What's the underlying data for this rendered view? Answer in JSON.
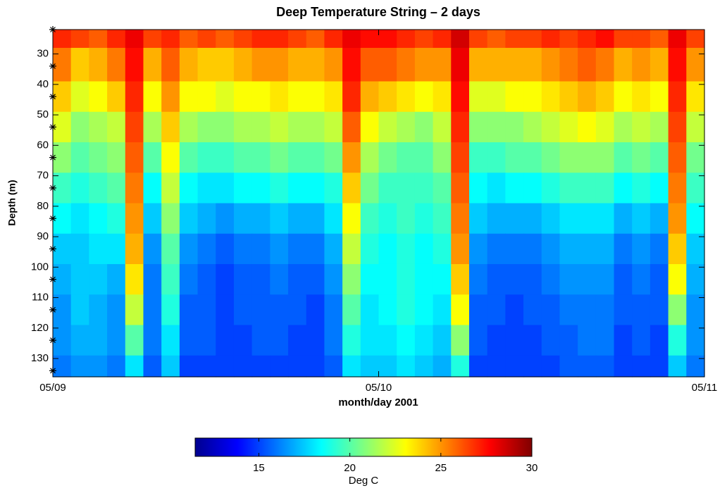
{
  "chart_data": {
    "type": "heatmap",
    "title": "Deep Temperature String – 2 days",
    "xlabel": "month/day 2001",
    "ylabel": "Depth (m)",
    "xlim": [
      0,
      2
    ],
    "xticks": [
      {
        "value": 0,
        "label": "05/09"
      },
      {
        "value": 1,
        "label": "05/10"
      },
      {
        "value": 2,
        "label": "05/11"
      }
    ],
    "ylim": [
      22,
      136
    ],
    "yticks": [
      30,
      40,
      50,
      60,
      70,
      80,
      90,
      100,
      110,
      120,
      130
    ],
    "y_reversed": true,
    "colormap": "jet",
    "y": [
      22,
      34,
      44,
      54,
      64,
      74,
      84,
      94,
      104,
      114,
      124,
      134
    ],
    "z": [
      [
        27,
        26.5,
        26,
        27,
        28,
        26.5,
        27,
        26,
        26.5,
        26,
        26.5,
        27,
        27,
        26.5,
        26,
        27,
        28,
        27.5,
        27.5,
        27,
        26.5,
        27,
        28.5,
        26.5,
        26,
        26.5,
        26.5,
        27,
        26.5,
        27,
        27.5,
        26.5,
        26.5,
        26,
        28,
        26.5
      ],
      [
        25.5,
        24,
        24.5,
        25.5,
        27.5,
        24.5,
        26,
        24.5,
        24,
        24,
        24.5,
        25,
        25,
        24.5,
        24.5,
        25,
        27.5,
        26,
        26,
        25.5,
        25,
        25,
        28,
        24.5,
        24.5,
        24.5,
        24.5,
        25,
        25.5,
        26,
        25.5,
        24.5,
        25,
        24.5,
        27.5,
        25
      ],
      [
        24,
        22.5,
        23,
        24,
        27,
        23,
        25,
        23,
        23,
        22.5,
        23,
        23,
        23.5,
        23,
        23,
        23.5,
        27,
        24.5,
        24,
        23.5,
        23,
        23.5,
        27.5,
        22.5,
        22.5,
        23,
        23,
        23.5,
        24,
        24.5,
        24,
        23,
        23.5,
        23,
        27,
        23.5
      ],
      [
        22.5,
        21,
        21.5,
        22,
        26.5,
        21.5,
        24,
        21.5,
        21,
        21,
        21.5,
        21.5,
        22,
        21.5,
        21.5,
        22,
        26,
        23,
        22,
        21.5,
        21,
        22,
        27,
        21,
        21,
        21,
        21.5,
        22,
        22.5,
        23,
        22.5,
        21.5,
        22,
        21.5,
        26.5,
        22
      ],
      [
        21,
        20,
        20.5,
        21,
        26,
        20,
        23,
        20,
        19.5,
        19.5,
        20,
        20,
        20.5,
        20,
        20,
        20.5,
        25,
        21.5,
        20.5,
        20,
        20,
        21,
        26.5,
        19.5,
        19.5,
        20,
        20,
        20.5,
        21,
        21,
        21,
        20,
        20.5,
        20,
        26,
        20.5
      ],
      [
        19.5,
        19,
        19.5,
        20,
        25.5,
        18.5,
        22,
        18.5,
        18,
        18,
        18.5,
        18.5,
        19,
        18.5,
        18.5,
        19,
        24,
        20.5,
        19.5,
        19.5,
        19.5,
        20,
        26,
        18.5,
        18,
        18.5,
        18.5,
        19,
        19.5,
        19.5,
        19.5,
        18.5,
        19,
        18.5,
        25.5,
        19.5
      ],
      [
        18.5,
        18,
        18.5,
        19,
        25,
        17.5,
        21,
        17.5,
        17,
        16.5,
        17,
        17,
        17.5,
        17,
        17,
        18,
        23,
        19.5,
        19,
        19.5,
        19,
        19.5,
        25.5,
        17.5,
        17,
        17,
        17,
        17.5,
        18,
        18,
        18,
        17,
        17.5,
        17,
        25,
        18.5
      ],
      [
        17.5,
        17.5,
        18,
        18,
        24.5,
        16.5,
        20,
        16.5,
        16,
        15.5,
        16,
        16,
        16.5,
        16,
        16,
        17,
        22,
        19,
        18.5,
        19,
        18.5,
        19,
        25,
        16.5,
        16,
        16,
        16,
        16.5,
        17,
        17,
        17,
        16,
        16.5,
        16,
        24,
        17.5
      ],
      [
        17,
        17.5,
        17.5,
        17,
        23.5,
        16,
        19.5,
        16,
        15.5,
        15,
        15.5,
        15.5,
        16,
        15.5,
        15.5,
        16.5,
        21,
        18.5,
        18.5,
        19,
        18.5,
        18.5,
        24,
        16,
        15.5,
        15.5,
        15.5,
        16,
        16.5,
        16.5,
        16.5,
        15.5,
        16,
        15.5,
        23,
        17
      ],
      [
        16.5,
        17.5,
        17,
        16.5,
        22,
        16,
        19,
        15.5,
        15.5,
        15,
        15.5,
        15.5,
        15.5,
        15.5,
        15,
        16,
        20,
        18,
        18.5,
        19,
        18.5,
        18,
        23,
        15.5,
        15.5,
        15,
        15.5,
        15.5,
        16,
        16,
        16,
        15.5,
        15.5,
        15.5,
        21,
        16.5
      ],
      [
        16.5,
        17,
        17,
        16.5,
        20,
        16,
        18,
        15.5,
        15.5,
        15,
        15,
        15.5,
        15.5,
        15,
        15,
        16,
        19,
        18,
        18,
        18.5,
        18,
        17.5,
        21,
        15.5,
        15,
        15,
        15,
        15.5,
        15.5,
        16,
        16,
        15,
        15.5,
        15,
        19,
        16.5
      ],
      [
        16,
        16.5,
        16.5,
        16,
        18,
        15.5,
        17.5,
        15,
        15,
        15,
        15,
        15,
        15,
        15,
        15,
        15.5,
        18,
        17.5,
        17.5,
        18,
        17.5,
        17,
        19,
        15,
        15,
        15,
        15,
        15,
        15.5,
        15.5,
        15.5,
        15,
        15,
        15,
        17.5,
        16
      ]
    ],
    "colorbar": {
      "label": "Deg C",
      "clim": [
        11.5,
        30
      ],
      "ticks": [
        15,
        20,
        25,
        30
      ]
    }
  }
}
